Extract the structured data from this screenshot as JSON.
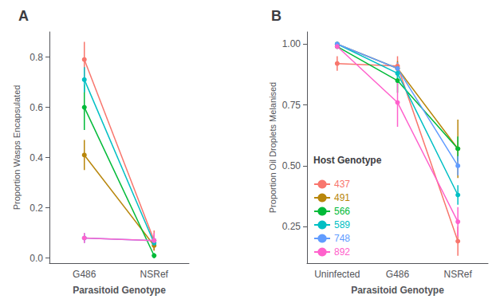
{
  "chart_data": [
    {
      "type": "line",
      "title": "A",
      "xlabel": "Parasitoid Genotype",
      "ylabel": "Proportion Wasps Encapsulated",
      "categories": [
        "G486",
        "NSRef"
      ],
      "ylim": [
        -0.02,
        0.9
      ],
      "yticks": [
        {
          "value": 0.0,
          "label": "0.0"
        },
        0.2,
        0.4,
        0.6,
        0.8
      ],
      "grid": false,
      "marker": "circle",
      "series": [
        {
          "color": "#F8766D",
          "values": [
            0.79,
            0.07
          ],
          "yerr": [
            0.07,
            0.04
          ]
        },
        {
          "color": "#B8860B",
          "values": [
            0.41,
            0.05
          ],
          "yerr": [
            0.06,
            0.02
          ]
        },
        {
          "color": "#00BA38",
          "values": [
            0.6,
            0.01
          ],
          "yerr": [
            0.09,
            0.01
          ]
        },
        {
          "color": "#00BFC4",
          "values": [
            0.71,
            0.06
          ],
          "yerr": [
            0.05,
            0.02
          ]
        },
        {
          "color": "#619CFF",
          "values": [
            0.08,
            0.07
          ],
          "yerr": [
            0.02,
            0.02
          ]
        },
        {
          "color": "#FF61CC",
          "values": [
            0.08,
            0.07
          ],
          "yerr": [
            0.02,
            0.03
          ]
        }
      ]
    },
    {
      "type": "line",
      "title": "B",
      "xlabel": "Parasitoid Genotype",
      "ylabel": "Proportion Oil Droplets Melanised",
      "categories": [
        "Uninfected",
        "G486",
        "NSRef"
      ],
      "ylim": [
        0.1,
        1.05
      ],
      "yticks": [
        0.25,
        {
          "value": 0.5,
          "label": "0.50"
        },
        0.75,
        {
          "value": 1.0,
          "label": "1.00"
        }
      ],
      "grid": false,
      "marker": "circle",
      "legend": "lower left",
      "legend_title": "Host Genotype",
      "series": [
        {
          "name": "437",
          "color": "#F8766D",
          "values": [
            0.92,
            0.91,
            0.19
          ],
          "yerr": [
            0.03,
            0.04,
            0.06
          ]
        },
        {
          "name": "491",
          "color": "#B8860B",
          "values": [
            1.0,
            0.9,
            0.57
          ],
          "yerr": [
            0.005,
            0.03,
            0.12
          ]
        },
        {
          "name": "566",
          "color": "#00BA38",
          "values": [
            0.99,
            0.85,
            0.57
          ],
          "yerr": [
            0.005,
            0.05,
            0.05
          ]
        },
        {
          "name": "589",
          "color": "#00BFC4",
          "values": [
            1.0,
            0.88,
            0.38
          ],
          "yerr": [
            0.005,
            0.03,
            0.04
          ]
        },
        {
          "name": "748",
          "color": "#619CFF",
          "values": [
            1.0,
            0.9,
            0.5
          ],
          "yerr": [
            0.005,
            0.025,
            0.04
          ]
        },
        {
          "name": "892",
          "color": "#FF61CC",
          "values": [
            0.99,
            0.76,
            0.27
          ],
          "yerr": [
            0.01,
            0.1,
            0.06
          ]
        }
      ]
    }
  ]
}
